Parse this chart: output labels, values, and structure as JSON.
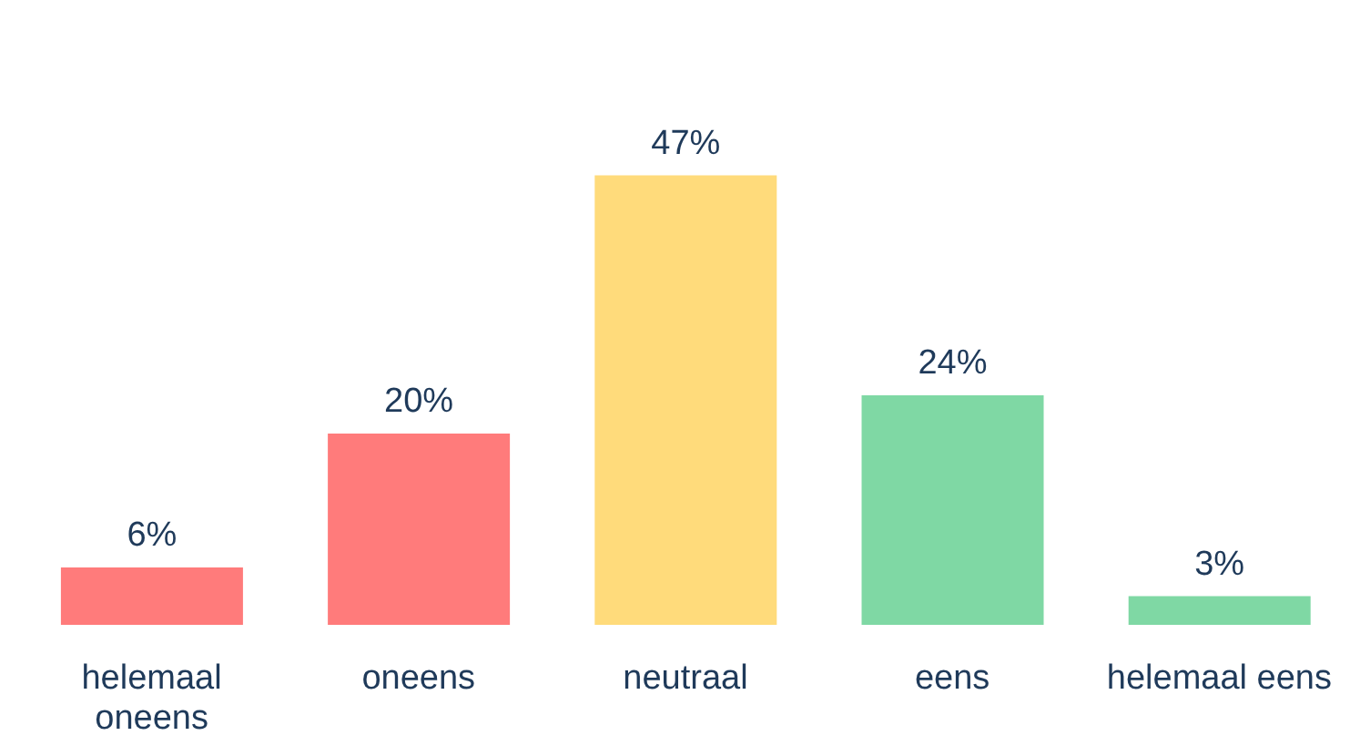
{
  "chart_data": {
    "type": "bar",
    "categories": [
      "helemaal oneens",
      "oneens",
      "neutraal",
      "eens",
      "helemaal eens"
    ],
    "values": [
      6,
      20,
      47,
      24,
      3
    ],
    "value_labels": [
      "6%",
      "20%",
      "47%",
      "24%",
      "3%"
    ],
    "colors": [
      "#ff7b7b",
      "#ff7b7b",
      "#ffdb7b",
      "#7fd8a4",
      "#7fd8a4"
    ],
    "tick_labels": "x"
  }
}
